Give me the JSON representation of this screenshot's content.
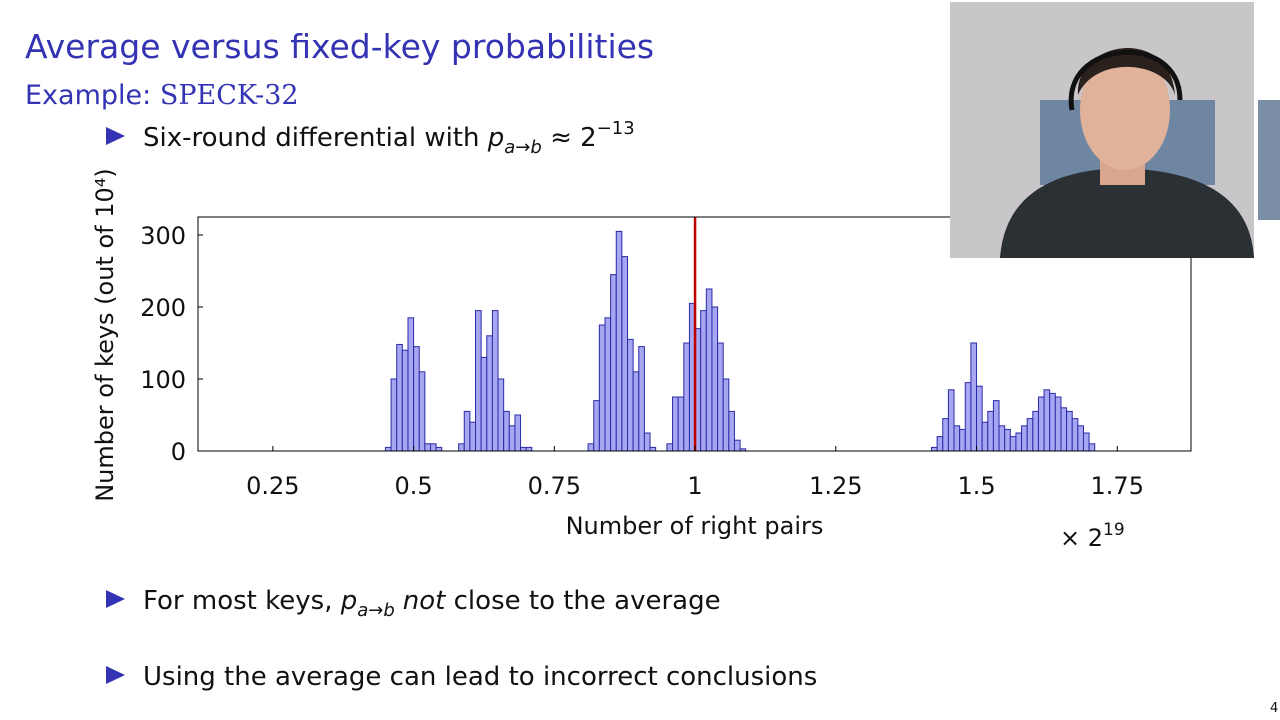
{
  "slide": {
    "title": "Average versus fixed-key probabilities",
    "subtitle": {
      "lead": "Example: ",
      "cipher": "SPECK-32"
    },
    "bullet_top": {
      "text": "Six-round differential with ",
      "p": "p",
      "sub": "a→b",
      "rel": " ≈ 2",
      "sup": "−13"
    },
    "bullet_mid": {
      "text": "For most keys, ",
      "p": "p",
      "sub": "a→b",
      "em": "not",
      "rest": " close to the average"
    },
    "bullet_bottom": {
      "text": "Using the average can lead to incorrect conclusions"
    },
    "page_number": "4",
    "multiplier": {
      "base": "× 2",
      "exponent": "19"
    }
  },
  "chart_data": {
    "type": "histogram",
    "x_label": "Number of right pairs",
    "y_label": "Number of keys (out of 10⁴)",
    "bins": [
      0.45,
      0.46,
      0.47,
      0.48,
      0.49,
      0.5,
      0.51,
      0.52,
      0.53,
      0.54,
      0.55,
      0.56,
      0.57,
      0.58,
      0.59,
      0.6,
      0.61,
      0.62,
      0.63,
      0.64,
      0.65,
      0.66,
      0.67,
      0.68,
      0.69,
      0.7,
      0.71,
      0.72,
      0.73,
      0.74,
      0.75,
      0.76,
      0.77,
      0.78,
      0.79,
      0.8,
      0.81,
      0.82,
      0.83,
      0.84,
      0.85,
      0.86,
      0.87,
      0.88,
      0.89,
      0.9,
      0.91,
      0.92,
      0.93,
      0.94,
      0.95,
      0.96,
      0.97,
      0.98,
      0.99,
      1.0,
      1.01,
      1.02,
      1.03,
      1.04,
      1.05,
      1.06,
      1.07,
      1.08,
      1.09,
      1.1,
      1.11,
      1.12,
      1.13,
      1.14,
      1.15,
      1.16,
      1.17,
      1.18,
      1.19,
      1.2,
      1.21,
      1.22,
      1.23,
      1.24,
      1.25,
      1.26,
      1.27,
      1.28,
      1.29,
      1.3,
      1.31,
      1.32,
      1.33,
      1.34,
      1.35,
      1.36,
      1.37,
      1.38,
      1.39,
      1.4,
      1.41,
      1.42,
      1.43,
      1.44,
      1.45,
      1.46,
      1.47,
      1.48,
      1.49,
      1.5,
      1.51,
      1.52,
      1.53,
      1.54,
      1.55,
      1.56,
      1.57,
      1.58,
      1.59,
      1.6,
      1.61,
      1.62,
      1.63,
      1.64,
      1.65,
      1.66,
      1.67,
      1.68,
      1.69,
      1.7,
      1.71
    ],
    "values": [
      5,
      100,
      148,
      140,
      185,
      145,
      110,
      10,
      10,
      5,
      0,
      0,
      0,
      10,
      55,
      40,
      195,
      130,
      160,
      195,
      100,
      55,
      35,
      50,
      5,
      5,
      0,
      0,
      0,
      0,
      0,
      0,
      0,
      0,
      0,
      0,
      10,
      70,
      175,
      185,
      245,
      305,
      270,
      155,
      110,
      145,
      25,
      5,
      0,
      0,
      10,
      75,
      75,
      150,
      205,
      170,
      195,
      225,
      200,
      150,
      100,
      55,
      15,
      3,
      0,
      0,
      0,
      0,
      0,
      0,
      0,
      0,
      0,
      0,
      0,
      0,
      0,
      0,
      0,
      0,
      0,
      0,
      0,
      0,
      0,
      0,
      0,
      0,
      0,
      0,
      0,
      0,
      0,
      0,
      0,
      0,
      0,
      5,
      20,
      45,
      85,
      35,
      30,
      95,
      150,
      90,
      40,
      55,
      70,
      35,
      30,
      20,
      25,
      35,
      45,
      55,
      75,
      85,
      80,
      75,
      60,
      55,
      45,
      35,
      25,
      10
    ],
    "color": "#a6a6f2",
    "edgecolor": "#2b2ba6",
    "reference_line": {
      "x": 1,
      "color": "#c00000"
    },
    "xlim": [
      0.117,
      1.881
    ],
    "ylim": [
      0,
      325
    ],
    "xticks": [
      0.25,
      0.5,
      0.75,
      1,
      1.25,
      1.5,
      1.75
    ],
    "yticks": [
      0,
      100,
      200,
      300
    ]
  }
}
